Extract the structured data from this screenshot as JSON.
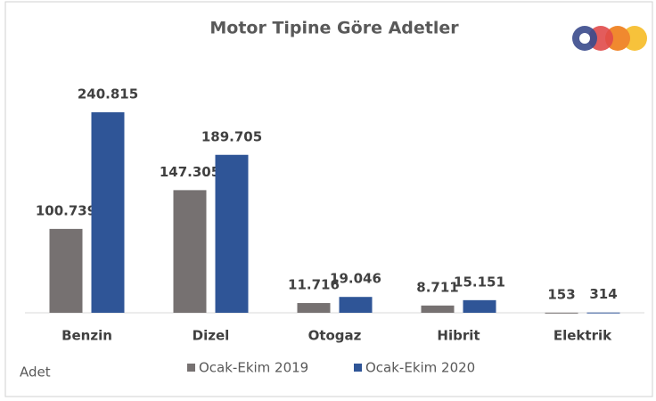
{
  "chart_data": {
    "type": "bar",
    "title": "Motor Tipine Göre Adetler",
    "y_axis_label": "Adet",
    "categories": [
      "Benzin",
      "Dizel",
      "Otogaz",
      "Hibrit",
      "Elektrik"
    ],
    "series": [
      {
        "name": "Ocak-Ekim 2019",
        "color": "#767171",
        "values": [
          100739,
          147305,
          11716,
          8711,
          153
        ],
        "value_labels": [
          "100.739",
          "147.305",
          "11.716",
          "8.711",
          "153"
        ]
      },
      {
        "name": "Ocak-Ekim 2020",
        "color": "#2f5597",
        "values": [
          240815,
          189705,
          19046,
          15151,
          314
        ],
        "value_labels": [
          "240.815",
          "189.705",
          "19.046",
          "15.151",
          "314"
        ]
      }
    ],
    "legend": "bottom"
  }
}
